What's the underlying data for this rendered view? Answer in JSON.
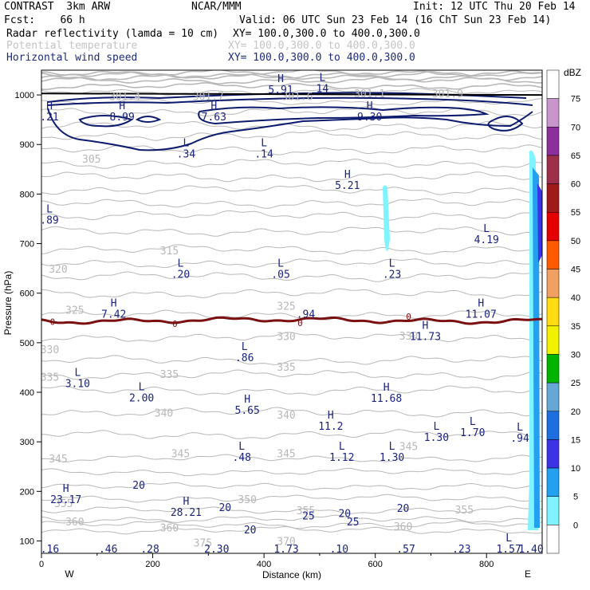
{
  "header": {
    "left1": "CONTRAST  3km ARW",
    "center1": "NCAR/MMM",
    "right1": "Init: 12 UTC Thu 20 Feb 14",
    "fcst": "Fcst:    66 h",
    "valid": "Valid: 06 UTC Sun 23 Feb 14 (16 ChT Sun 23 Feb 14)",
    "field1_name": "Radar reflectivity (lamda = 10 cm)",
    "field1_xy": "XY= 100.0,300.0 to 400.0,300.0",
    "field2_name": "Potential temperature",
    "field2_xy": "XY= 100.0,300.0 to 400.0,300.0",
    "field3_name": "Horizontal wind speed",
    "field3_xy": "XY= 100.0,300.0 to 400.0,300.0"
  },
  "colors": {
    "theta": "#b8b8b8",
    "wind": "#0d1b6e",
    "zero_line": "#7a1010",
    "label": "#1a237e",
    "radar": "#7ff3ff"
  },
  "chart_data": {
    "type": "cross-section",
    "xlabel": "Distance (km)",
    "ylabel": "Pressure (hPa)",
    "xlim": [
      0,
      900
    ],
    "ylim": [
      1050,
      75
    ],
    "x_ticks": [
      0,
      200,
      400,
      600,
      800
    ],
    "y_ticks": [
      100,
      200,
      300,
      400,
      500,
      600,
      700,
      800,
      900,
      1000
    ],
    "x_end_labels": {
      "left": "W",
      "right": "E"
    },
    "colorbar": {
      "unit": "dBZ",
      "levels": [
        "75",
        "70",
        "65",
        "60",
        "55",
        "50",
        "45",
        "40",
        "35",
        "30",
        "25",
        "20",
        "15",
        "10",
        "5",
        "0"
      ],
      "colors": [
        "#ffffff",
        "#c996cc",
        "#8a2f9c",
        "#9e2f4a",
        "#a01a1a",
        "#e50000",
        "#ff5a00",
        "#f0a060",
        "#ffdc14",
        "#f2f200",
        "#00b400",
        "#66a7d6",
        "#1e6ee0",
        "#3c32e6",
        "#23a0f0",
        "#7ff3ff",
        "#ffffff"
      ]
    },
    "theta_labels": [
      {
        "x": 60,
        "p": 138,
        "text": "360"
      },
      {
        "x": 230,
        "p": 126,
        "text": "360"
      },
      {
        "x": 440,
        "p": 98,
        "text": "370"
      },
      {
        "x": 290,
        "p": 95,
        "text": "375"
      },
      {
        "x": 650,
        "p": 128,
        "text": "360"
      },
      {
        "x": 40,
        "p": 175,
        "text": "355"
      },
      {
        "x": 475,
        "p": 160,
        "text": "355"
      },
      {
        "x": 760,
        "p": 162,
        "text": "355"
      },
      {
        "x": 370,
        "p": 183,
        "text": "350"
      },
      {
        "x": 30,
        "p": 265,
        "text": "345"
      },
      {
        "x": 250,
        "p": 275,
        "text": "345"
      },
      {
        "x": 440,
        "p": 275,
        "text": "345"
      },
      {
        "x": 660,
        "p": 290,
        "text": "345"
      },
      {
        "x": 220,
        "p": 357,
        "text": "340"
      },
      {
        "x": 440,
        "p": 353,
        "text": "340"
      },
      {
        "x": 15,
        "p": 430,
        "text": "335"
      },
      {
        "x": 230,
        "p": 435,
        "text": "335"
      },
      {
        "x": 440,
        "p": 450,
        "text": "335"
      },
      {
        "x": 15,
        "p": 485,
        "text": "330"
      },
      {
        "x": 440,
        "p": 512,
        "text": "330"
      },
      {
        "x": 660,
        "p": 513,
        "text": "330"
      },
      {
        "x": 60,
        "p": 565,
        "text": "325"
      },
      {
        "x": 440,
        "p": 573,
        "text": "325"
      },
      {
        "x": 30,
        "p": 648,
        "text": "320"
      },
      {
        "x": 230,
        "p": 685,
        "text": "315"
      },
      {
        "x": 90,
        "p": 870,
        "text": "305"
      },
      {
        "x": 150,
        "p": 996,
        "text": "301.4"
      },
      {
        "x": 300,
        "p": 996,
        "text": "301.7"
      },
      {
        "x": 460,
        "p": 996,
        "text": "301.6"
      },
      {
        "x": 590,
        "p": 1002,
        "text": "301.1"
      },
      {
        "x": 730,
        "p": 1002,
        "text": "301.9"
      }
    ],
    "theta_levels": [
      300,
      305,
      310,
      315,
      320,
      325,
      330,
      335,
      340,
      345,
      350,
      355,
      360,
      370,
      375
    ],
    "wind_labels": [
      {
        "x": 375,
        "p": 122,
        "text": "20"
      },
      {
        "x": 560,
        "p": 138,
        "text": "25"
      },
      {
        "x": 480,
        "p": 150,
        "text": "25"
      },
      {
        "x": 545,
        "p": 155,
        "text": "20"
      },
      {
        "x": 650,
        "p": 165,
        "text": "20"
      },
      {
        "x": 330,
        "p": 167,
        "text": "20"
      },
      {
        "x": 175,
        "p": 212,
        "text": "20"
      }
    ],
    "zero_line_labels": [
      {
        "x": 20,
        "p": 542,
        "text": "0"
      },
      {
        "x": 240,
        "p": 538,
        "text": "0"
      },
      {
        "x": 660,
        "p": 553,
        "text": "0"
      },
      {
        "x": 465,
        "p": 540,
        "text": "0"
      }
    ],
    "hl_markers": [
      {
        "x": 15,
        "p": 83,
        "letter": "",
        "value": ".16"
      },
      {
        "x": 120,
        "p": 83,
        "letter": "",
        "value": ".46"
      },
      {
        "x": 195,
        "p": 83,
        "letter": "",
        "value": ".28"
      },
      {
        "x": 315,
        "p": 83,
        "letter": "",
        "value": "2.30"
      },
      {
        "x": 440,
        "p": 83,
        "letter": "",
        "value": "1.73"
      },
      {
        "x": 535,
        "p": 83,
        "letter": "",
        "value": ".10"
      },
      {
        "x": 655,
        "p": 83,
        "letter": "",
        "value": ".57"
      },
      {
        "x": 755,
        "p": 83,
        "letter": "",
        "value": ".23"
      },
      {
        "x": 840,
        "p": 83,
        "letter": "L",
        "value": "1.57"
      },
      {
        "x": 900,
        "p": 83,
        "letter": "",
        "value": "1.40"
      },
      {
        "x": 44,
        "p": 183,
        "letter": "H",
        "value": "23.17"
      },
      {
        "x": 260,
        "p": 157,
        "letter": "H",
        "value": "28.21"
      },
      {
        "x": 360,
        "p": 268,
        "letter": "L",
        "value": ".48"
      },
      {
        "x": 540,
        "p": 268,
        "letter": "L",
        "value": "1.12"
      },
      {
        "x": 630,
        "p": 268,
        "letter": "L",
        "value": "1.30"
      },
      {
        "x": 710,
        "p": 308,
        "letter": "L",
        "value": "1.30"
      },
      {
        "x": 775,
        "p": 318,
        "letter": "L",
        "value": "1.70"
      },
      {
        "x": 860,
        "p": 307,
        "letter": "L",
        "value": ".94"
      },
      {
        "x": 520,
        "p": 331,
        "letter": "H",
        "value": "11.2"
      },
      {
        "x": 370,
        "p": 363,
        "letter": "H",
        "value": "5.65"
      },
      {
        "x": 620,
        "p": 387,
        "letter": "H",
        "value": "11.68"
      },
      {
        "x": 180,
        "p": 388,
        "letter": "L",
        "value": "2.00"
      },
      {
        "x": 65,
        "p": 417,
        "letter": "L",
        "value": "3.10"
      },
      {
        "x": 365,
        "p": 469,
        "letter": "L",
        "value": ".86"
      },
      {
        "x": 690,
        "p": 512,
        "letter": "H",
        "value": "11.73"
      },
      {
        "x": 130,
        "p": 557,
        "letter": "H",
        "value": "7.42"
      },
      {
        "x": 475,
        "p": 557,
        "letter": "",
        "value": ".94"
      },
      {
        "x": 790,
        "p": 557,
        "letter": "H",
        "value": "11.07"
      },
      {
        "x": 250,
        "p": 637,
        "letter": "L",
        "value": ".20"
      },
      {
        "x": 430,
        "p": 637,
        "letter": "L",
        "value": ".05"
      },
      {
        "x": 630,
        "p": 637,
        "letter": "L",
        "value": ".23"
      },
      {
        "x": 800,
        "p": 707,
        "letter": "L",
        "value": "4.19"
      },
      {
        "x": 12,
        "p": 747,
        "letter": "L",
        "value": ".89"
      },
      {
        "x": 550,
        "p": 817,
        "letter": "H",
        "value": "5.21"
      },
      {
        "x": 260,
        "p": 880,
        "letter": "L",
        "value": ".34"
      },
      {
        "x": 400,
        "p": 880,
        "letter": "L",
        "value": ".14"
      },
      {
        "x": 5,
        "p": 955,
        "letter": "H",
        "value": ".21"
      },
      {
        "x": 145,
        "p": 955,
        "letter": "H",
        "value": "8.99"
      },
      {
        "x": 310,
        "p": 955,
        "letter": "H",
        "value": "7.63"
      },
      {
        "x": 590,
        "p": 955,
        "letter": "H",
        "value": "9.30"
      },
      {
        "x": 430,
        "p": 1010,
        "letter": "H",
        "value": "5.91"
      },
      {
        "x": 505,
        "p": 1012,
        "letter": "L",
        "value": "14"
      }
    ]
  }
}
